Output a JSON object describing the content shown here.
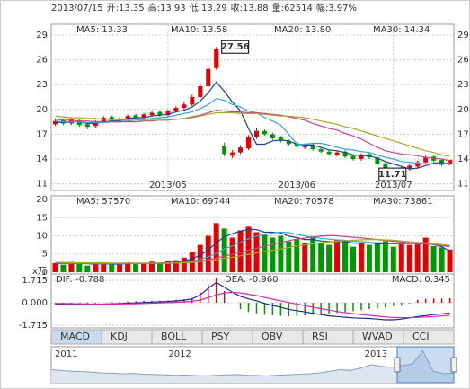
{
  "header": [
    "2013/07/15",
    "开:13.35",
    "高:13.93",
    "低:13.29",
    "收:13.88",
    "量:62514",
    "幅:3.97%"
  ],
  "tabs": [
    "MACD",
    "KDJ",
    "BOLL",
    "PSY",
    "OBV",
    "RSI",
    "WVAD",
    "CCI"
  ],
  "selected_tab": 0,
  "chart_data": [
    {
      "type": "candlestick",
      "categories": [
        null,
        null,
        null,
        null,
        null,
        null,
        null,
        null,
        null,
        null,
        null,
        null,
        null,
        null,
        "2013/05",
        null,
        null,
        null,
        null,
        null,
        null,
        null,
        null,
        null,
        null,
        null,
        null,
        null,
        null,
        null,
        "2013/06",
        null,
        null,
        null,
        null,
        null,
        null,
        null,
        null,
        null,
        null,
        null,
        "2013/07",
        null,
        null,
        null,
        null,
        null,
        null,
        null
      ],
      "open": [
        18.2,
        18.7,
        18.3,
        18.7,
        18.2,
        18.0,
        18.5,
        19.1,
        18.6,
        18.9,
        19.3,
        19.0,
        19.3,
        19.7,
        19.3,
        19.8,
        20.2,
        20.6,
        21.5,
        22.8,
        25.0,
        15.6,
        14.4,
        14.8,
        15.3,
        16.6,
        17.4,
        17.0,
        16.6,
        16.2,
        15.9,
        15.4,
        15.7,
        15.2,
        14.9,
        14.5,
        14.9,
        14.4,
        14.0,
        14.6,
        14.2,
        13.4,
        12.5,
        12.2,
        12.8,
        13.1,
        13.6,
        14.3,
        13.9,
        13.35
      ],
      "high": [
        18.9,
        18.9,
        19.0,
        18.9,
        18.4,
        18.7,
        19.2,
        19.3,
        19.1,
        19.4,
        19.5,
        19.6,
        19.8,
        19.9,
        20.0,
        20.4,
        20.9,
        21.8,
        23.1,
        25.2,
        27.56,
        16.0,
        15.1,
        15.7,
        16.9,
        17.8,
        17.6,
        17.2,
        16.8,
        16.4,
        16.1,
        15.9,
        15.9,
        15.4,
        15.1,
        15.0,
        15.1,
        14.6,
        14.7,
        14.8,
        14.3,
        13.6,
        12.8,
        13.1,
        13.4,
        13.8,
        14.5,
        14.5,
        14.0,
        13.93
      ],
      "low": [
        18.0,
        18.1,
        18.1,
        17.9,
        17.6,
        17.8,
        18.3,
        18.5,
        18.4,
        18.7,
        18.8,
        18.8,
        19.1,
        19.1,
        19.1,
        19.6,
        20.0,
        20.4,
        21.3,
        22.6,
        24.8,
        14.3,
        14.1,
        14.6,
        15.1,
        16.4,
        16.8,
        16.3,
        16.0,
        15.6,
        15.3,
        15.2,
        15.0,
        14.7,
        14.4,
        14.3,
        14.1,
        13.8,
        13.8,
        14.0,
        13.2,
        12.2,
        11.71,
        12.0,
        12.6,
        12.9,
        13.4,
        13.6,
        13.1,
        13.29
      ],
      "close": [
        18.6,
        18.3,
        18.8,
        18.1,
        17.9,
        18.5,
        19.0,
        18.7,
        18.9,
        19.2,
        19.0,
        19.4,
        19.6,
        19.3,
        19.8,
        20.2,
        20.6,
        21.5,
        22.8,
        24.9,
        27.3,
        14.6,
        14.8,
        15.4,
        16.6,
        17.4,
        17.0,
        16.5,
        16.2,
        15.8,
        15.5,
        15.6,
        15.2,
        14.9,
        14.6,
        14.8,
        14.3,
        14.0,
        14.5,
        14.2,
        13.4,
        12.4,
        12.3,
        12.9,
        13.2,
        13.6,
        14.2,
        13.8,
        13.3,
        13.88
      ],
      "ylim": [
        10.2,
        30.3
      ],
      "yticks": [
        11,
        14,
        17,
        20,
        23,
        26,
        29
      ],
      "grid": true,
      "up_color": "#e60000",
      "down_color": "#009a00",
      "annotations": [
        "27.56",
        "11.71"
      ],
      "series": [
        {
          "name": "MA5: 13.33",
          "color": "#1c3f94",
          "values": [
            18.5,
            18.4,
            18.5,
            18.5,
            18.3,
            18.3,
            18.5,
            18.6,
            18.6,
            18.9,
            19.0,
            19.0,
            19.2,
            19.3,
            19.4,
            19.7,
            19.9,
            20.3,
            21.0,
            22.0,
            23.3,
            22.2,
            20.9,
            19.8,
            17.7,
            15.8,
            15.8,
            16.2,
            16.3,
            16.2,
            15.8,
            15.7,
            15.7,
            15.4,
            15.1,
            15.0,
            14.8,
            14.5,
            14.4,
            14.4,
            14.1,
            13.7,
            13.4,
            13.1,
            12.8,
            12.9,
            13.2,
            13.5,
            13.6,
            13.33
          ]
        },
        {
          "name": "MA10: 13.58",
          "color": "#2fa8d8",
          "values": [
            18.6,
            18.5,
            18.5,
            18.5,
            18.4,
            18.4,
            18.4,
            18.5,
            18.5,
            18.6,
            18.7,
            18.8,
            18.9,
            19.0,
            19.1,
            19.3,
            19.5,
            19.7,
            20.1,
            20.6,
            21.3,
            21.1,
            20.6,
            20.3,
            19.8,
            19.6,
            19.0,
            18.6,
            18.1,
            17.0,
            15.8,
            15.8,
            15.9,
            15.9,
            15.7,
            15.4,
            15.2,
            15.1,
            14.9,
            14.8,
            14.5,
            14.2,
            14.0,
            13.7,
            13.6,
            13.5,
            13.4,
            13.4,
            13.4,
            13.58
          ]
        },
        {
          "name": "MA20: 13.80",
          "color": "#d0408c",
          "values": [
            18.8,
            18.7,
            18.7,
            18.6,
            18.6,
            18.5,
            18.5,
            18.5,
            18.5,
            18.5,
            18.5,
            18.6,
            18.6,
            18.7,
            18.7,
            18.8,
            18.9,
            19.1,
            19.3,
            19.6,
            19.9,
            19.8,
            19.7,
            19.7,
            19.6,
            19.6,
            19.5,
            19.4,
            19.3,
            19.1,
            18.9,
            18.7,
            18.3,
            18.0,
            17.7,
            17.5,
            17.1,
            16.8,
            16.4,
            15.9,
            15.4,
            15.0,
            14.8,
            14.6,
            14.5,
            14.4,
            14.2,
            14.1,
            14.0,
            13.8
          ]
        },
        {
          "name": "MA30: 14.34",
          "color": "#a9a824",
          "values": [
            19.2,
            19.1,
            19.0,
            19.0,
            18.9,
            18.9,
            18.8,
            18.8,
            18.7,
            18.7,
            18.7,
            18.7,
            18.7,
            18.7,
            18.8,
            18.8,
            18.9,
            19.0,
            19.2,
            19.4,
            19.6,
            19.6,
            19.6,
            19.5,
            19.5,
            19.5,
            19.4,
            19.3,
            19.2,
            19.2,
            19.1,
            19.0,
            18.8,
            18.6,
            18.4,
            18.2,
            17.9,
            17.7,
            17.4,
            17.1,
            16.8,
            16.5,
            16.2,
            15.9,
            15.6,
            15.3,
            15.0,
            14.8,
            14.5,
            14.34
          ]
        }
      ]
    },
    {
      "type": "bar",
      "unit": "x万",
      "values": [
        2.5,
        2.0,
        2.8,
        2.3,
        1.8,
        2.2,
        2.6,
        2.1,
        2.4,
        2.7,
        2.2,
        2.5,
        2.9,
        2.4,
        3.0,
        3.3,
        4.0,
        5.5,
        7.5,
        10.0,
        13.5,
        12.0,
        9.5,
        11.5,
        12.5,
        11.0,
        10.5,
        9.5,
        10.0,
        8.5,
        9.0,
        8.0,
        9.5,
        8.0,
        7.5,
        9.0,
        8.5,
        7.0,
        8.0,
        7.5,
        7.8,
        8.5,
        7.0,
        8.0,
        7.5,
        8.2,
        9.5,
        7.2,
        6.8,
        6.25
      ],
      "ylim": [
        -0.5,
        21
      ],
      "yticks": [
        0,
        5,
        10,
        15,
        20
      ],
      "grid": true,
      "series": [
        {
          "name": "MA5: 57570",
          "color": "#1c3f94",
          "values": [
            2.4,
            2.3,
            2.4,
            2.4,
            2.3,
            2.2,
            2.3,
            2.2,
            2.2,
            2.4,
            2.4,
            2.4,
            2.5,
            2.5,
            2.6,
            2.8,
            3.1,
            3.7,
            4.7,
            6.1,
            8.1,
            9.7,
            10.6,
            11.3,
            11.8,
            11.7,
            11.0,
            11.0,
            10.8,
            9.9,
            9.5,
            9.0,
            9.0,
            8.6,
            8.4,
            8.4,
            8.5,
            8.0,
            8.0,
            8.1,
            7.8,
            7.8,
            7.8,
            7.8,
            7.8,
            7.8,
            7.9,
            7.6,
            7.0,
            5.8
          ]
        },
        {
          "name": "MA10: 69744",
          "color": "#2fa8d8",
          "values": [
            2.5,
            2.4,
            2.4,
            2.4,
            2.4,
            2.3,
            2.3,
            2.3,
            2.3,
            2.4,
            2.4,
            2.4,
            2.4,
            2.4,
            2.4,
            2.5,
            2.7,
            3.0,
            3.5,
            4.2,
            5.2,
            6.4,
            7.2,
            8.2,
            9.2,
            9.9,
            10.3,
            10.8,
            11.0,
            10.9,
            10.4,
            10.0,
            9.6,
            9.3,
            9.1,
            8.9,
            8.8,
            8.5,
            8.4,
            8.2,
            8.1,
            8.0,
            7.9,
            7.9,
            7.8,
            7.8,
            7.8,
            7.6,
            7.3,
            6.97
          ]
        },
        {
          "name": "MA20: 70578",
          "color": "#d0408c",
          "values": [
            2.6,
            2.6,
            2.5,
            2.5,
            2.5,
            2.5,
            2.5,
            2.4,
            2.4,
            2.4,
            2.4,
            2.4,
            2.4,
            2.4,
            2.5,
            2.5,
            2.6,
            2.8,
            3.0,
            3.4,
            3.9,
            4.4,
            4.9,
            5.4,
            6.0,
            6.6,
            7.1,
            7.6,
            8.2,
            8.7,
            9.1,
            9.4,
            9.7,
            9.9,
            10.1,
            10.0,
            9.8,
            9.6,
            9.4,
            9.2,
            9.0,
            8.7,
            8.5,
            8.3,
            8.1,
            7.9,
            7.8,
            7.6,
            7.3,
            7.06
          ]
        },
        {
          "name": "MA30: 73861",
          "color": "#a9a824",
          "values": [
            2.7,
            2.7,
            2.6,
            2.6,
            2.6,
            2.6,
            2.6,
            2.5,
            2.5,
            2.5,
            2.5,
            2.5,
            2.5,
            2.5,
            2.5,
            2.6,
            2.6,
            2.7,
            2.9,
            3.1,
            3.4,
            3.8,
            4.1,
            4.5,
            4.9,
            5.3,
            5.7,
            6.0,
            6.4,
            6.8,
            7.2,
            7.5,
            7.8,
            8.1,
            8.3,
            8.5,
            8.7,
            8.8,
            8.9,
            9.0,
            9.0,
            8.9,
            8.8,
            8.6,
            8.4,
            8.2,
            8.0,
            7.8,
            7.6,
            7.39
          ]
        }
      ]
    },
    {
      "type": "macd",
      "ylim": [
        -1.92,
        2.2
      ],
      "yticks": [
        1.715,
        {
          "value": 0,
          "label": "0.000"
        },
        -1.715
      ],
      "grid": true,
      "up_color": "#e60000",
      "down_color": "#009a00",
      "series": [
        {
          "name": "DIF: -0.788",
          "color": "#1c2a8a",
          "values": [
            -0.1,
            -0.12,
            -0.1,
            -0.12,
            -0.15,
            -0.14,
            -0.1,
            -0.08,
            -0.06,
            -0.03,
            -0.01,
            0.02,
            0.05,
            0.07,
            0.1,
            0.15,
            0.2,
            0.3,
            0.6,
            1.1,
            1.55,
            1.2,
            0.8,
            0.5,
            0.3,
            0.15,
            -0.05,
            -0.2,
            -0.35,
            -0.5,
            -0.6,
            -0.7,
            -0.8,
            -0.9,
            -1.0,
            -1.05,
            -1.1,
            -1.15,
            -1.18,
            -1.2,
            -1.25,
            -1.3,
            -1.3,
            -1.25,
            -1.15,
            -1.05,
            -0.98,
            -0.9,
            -0.85,
            -0.788
          ]
        },
        {
          "name": "DEA: -0.960",
          "color": "#e020c0",
          "values": [
            -0.05,
            -0.06,
            -0.07,
            -0.08,
            -0.09,
            -0.1,
            -0.1,
            -0.1,
            -0.09,
            -0.08,
            -0.07,
            -0.05,
            -0.03,
            -0.01,
            0.01,
            0.04,
            0.07,
            0.12,
            0.2,
            0.4,
            0.6,
            0.75,
            0.8,
            0.75,
            0.65,
            0.55,
            0.4,
            0.28,
            0.15,
            0.02,
            -0.1,
            -0.22,
            -0.34,
            -0.45,
            -0.56,
            -0.66,
            -0.75,
            -0.83,
            -0.9,
            -0.96,
            -1.02,
            -1.08,
            -1.12,
            -1.14,
            -1.14,
            -1.12,
            -1.09,
            -1.05,
            -1.01,
            -0.96
          ]
        },
        {
          "name": "MACD: 0.345",
          "color": "#c00000",
          "kind": "bar",
          "values": [
            -0.1,
            -0.12,
            -0.06,
            -0.08,
            -0.12,
            -0.08,
            0,
            0.04,
            0.06,
            0.1,
            0.12,
            0.14,
            0.16,
            0.16,
            0.18,
            0.22,
            0.26,
            0.36,
            0.8,
            1.4,
            1.9,
            0.9,
            0,
            -0.5,
            -0.7,
            -0.8,
            -0.9,
            -0.96,
            -1.0,
            -1.04,
            -1.0,
            -0.96,
            -0.92,
            -0.9,
            -0.88,
            -0.78,
            -0.7,
            -0.64,
            -0.56,
            -0.48,
            -0.44,
            -0.36,
            -0.24,
            -0.22,
            -0.06,
            0.22,
            0.3,
            0.32,
            0.32,
            0.345
          ]
        }
      ]
    },
    {
      "type": "area",
      "categories": [
        "2011",
        null,
        null,
        null,
        null,
        null,
        null,
        null,
        null,
        null,
        null,
        "2012",
        null,
        null,
        null,
        null,
        null,
        null,
        null,
        null,
        null,
        null,
        null,
        null,
        null,
        null,
        null,
        null,
        null,
        null,
        "2013",
        null,
        null,
        null,
        null,
        null,
        null,
        null,
        null,
        null
      ],
      "values": [
        16,
        15.5,
        15,
        14.8,
        14.5,
        14,
        13.8,
        13.5,
        13.6,
        13.2,
        13,
        12.8,
        12.5,
        12.7,
        12.4,
        12.2,
        12.5,
        12.8,
        13,
        12.6,
        12.4,
        12.2,
        12.6,
        12.9,
        13.2,
        13.5,
        14,
        15,
        16,
        15.5,
        17,
        19,
        18,
        17.5,
        18.5,
        19.5,
        27.5,
        15,
        13.5,
        13.9
      ],
      "ylim": [
        8,
        30
      ]
    }
  ]
}
